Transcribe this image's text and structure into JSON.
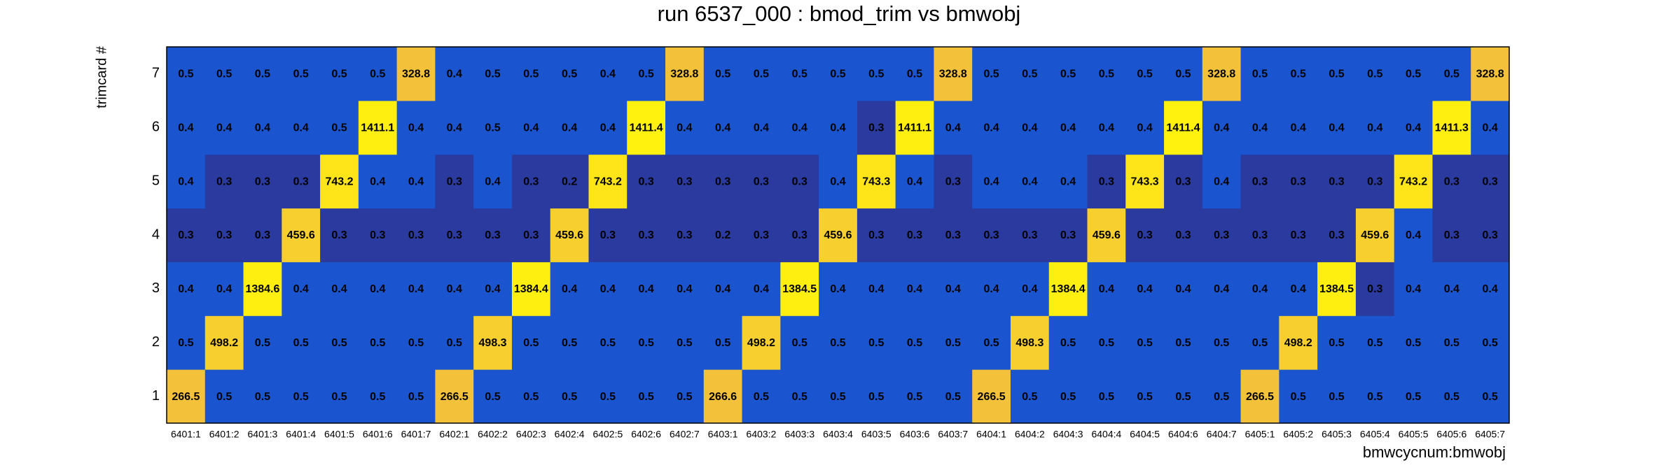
{
  "chart_data": {
    "type": "heatmap",
    "title": "run 6537_000 : bmod_trim vs bmwobj",
    "x_label": "bmwcycnum:bmwobj",
    "y_label": "trimcard #",
    "x_categories": [
      "6401:1",
      "6401:2",
      "6401:3",
      "6401:4",
      "6401:5",
      "6401:6",
      "6401:7",
      "6402:1",
      "6402:2",
      "6402:3",
      "6402:4",
      "6402:5",
      "6402:6",
      "6402:7",
      "6403:1",
      "6403:2",
      "6403:3",
      "6403:4",
      "6403:5",
      "6403:6",
      "6403:7",
      "6404:1",
      "6404:2",
      "6404:3",
      "6404:4",
      "6404:5",
      "6404:6",
      "6404:7",
      "6405:1",
      "6405:2",
      "6405:3",
      "6405:4",
      "6405:5",
      "6405:6",
      "6405:7"
    ],
    "y_categories": [
      "1",
      "2",
      "3",
      "4",
      "5",
      "6",
      "7"
    ],
    "z": [
      [
        266.5,
        0.5,
        0.5,
        0.5,
        0.5,
        0.5,
        0.5,
        266.5,
        0.5,
        0.5,
        0.5,
        0.5,
        0.5,
        0.5,
        266.6,
        0.5,
        0.5,
        0.5,
        0.5,
        0.5,
        0.5,
        266.5,
        0.5,
        0.5,
        0.5,
        0.5,
        0.5,
        0.5,
        266.5,
        0.5,
        0.5,
        0.5,
        0.5,
        0.5,
        0.5
      ],
      [
        0.5,
        498.2,
        0.5,
        0.5,
        0.5,
        0.5,
        0.5,
        0.5,
        498.3,
        0.5,
        0.5,
        0.5,
        0.5,
        0.5,
        0.5,
        498.2,
        0.5,
        0.5,
        0.5,
        0.5,
        0.5,
        0.5,
        498.3,
        0.5,
        0.5,
        0.5,
        0.5,
        0.5,
        0.5,
        498.2,
        0.5,
        0.5,
        0.5,
        0.5,
        0.5
      ],
      [
        0.4,
        0.4,
        1384.6,
        0.4,
        0.4,
        0.4,
        0.4,
        0.4,
        0.4,
        1384.4,
        0.4,
        0.4,
        0.4,
        0.4,
        0.4,
        0.4,
        1384.5,
        0.4,
        0.4,
        0.4,
        0.4,
        0.4,
        0.4,
        1384.4,
        0.4,
        0.4,
        0.4,
        0.4,
        0.4,
        0.4,
        1384.5,
        0.3,
        0.4,
        0.4,
        0.4
      ],
      [
        0.3,
        0.3,
        0.3,
        459.6,
        0.3,
        0.3,
        0.3,
        0.3,
        0.3,
        0.3,
        459.6,
        0.3,
        0.3,
        0.3,
        0.2,
        0.3,
        0.3,
        459.6,
        0.3,
        0.3,
        0.3,
        0.3,
        0.3,
        0.3,
        459.6,
        0.3,
        0.3,
        0.3,
        0.3,
        0.3,
        0.3,
        459.6,
        0.4,
        0.3,
        0.3
      ],
      [
        0.4,
        0.3,
        0.3,
        0.3,
        743.2,
        0.4,
        0.4,
        0.3,
        0.4,
        0.3,
        0.2,
        743.2,
        0.3,
        0.3,
        0.3,
        0.3,
        0.3,
        0.4,
        743.3,
        0.4,
        0.3,
        0.4,
        0.4,
        0.4,
        0.3,
        743.3,
        0.3,
        0.4,
        0.3,
        0.3,
        0.3,
        0.3,
        743.2,
        0.3,
        0.3
      ],
      [
        0.4,
        0.4,
        0.4,
        0.4,
        0.5,
        1411.1,
        0.4,
        0.4,
        0.5,
        0.4,
        0.4,
        0.4,
        1411.4,
        0.4,
        0.4,
        0.4,
        0.4,
        0.4,
        0.3,
        1411.1,
        0.4,
        0.4,
        0.4,
        0.4,
        0.4,
        0.4,
        1411.4,
        0.4,
        0.4,
        0.4,
        0.4,
        0.4,
        0.4,
        1411.3,
        0.4
      ],
      [
        0.5,
        0.5,
        0.5,
        0.5,
        0.5,
        0.5,
        328.8,
        0.4,
        0.5,
        0.5,
        0.5,
        0.4,
        0.5,
        328.8,
        0.5,
        0.5,
        0.5,
        0.5,
        0.5,
        0.5,
        328.8,
        0.5,
        0.5,
        0.5,
        0.5,
        0.5,
        0.5,
        328.8,
        0.5,
        0.5,
        0.5,
        0.5,
        0.5,
        0.5,
        328.8
      ]
    ],
    "log_color": true,
    "palette": [
      "#2b3a9e",
      "#1a55cf",
      "#1a55cf",
      "#1a55cf",
      "#1a55cf",
      "#1a55cf",
      "#1a55cf",
      "#1a55cf",
      "#1a55cf",
      "#1a55cf",
      "#1a55cf",
      "#1a55cf",
      "#1a55cf",
      "#1a55cf",
      "#1a55cf",
      "#f3c13a",
      "#f7cf2e",
      "#fde51a",
      "#ffef10",
      "#fff20e"
    ]
  }
}
